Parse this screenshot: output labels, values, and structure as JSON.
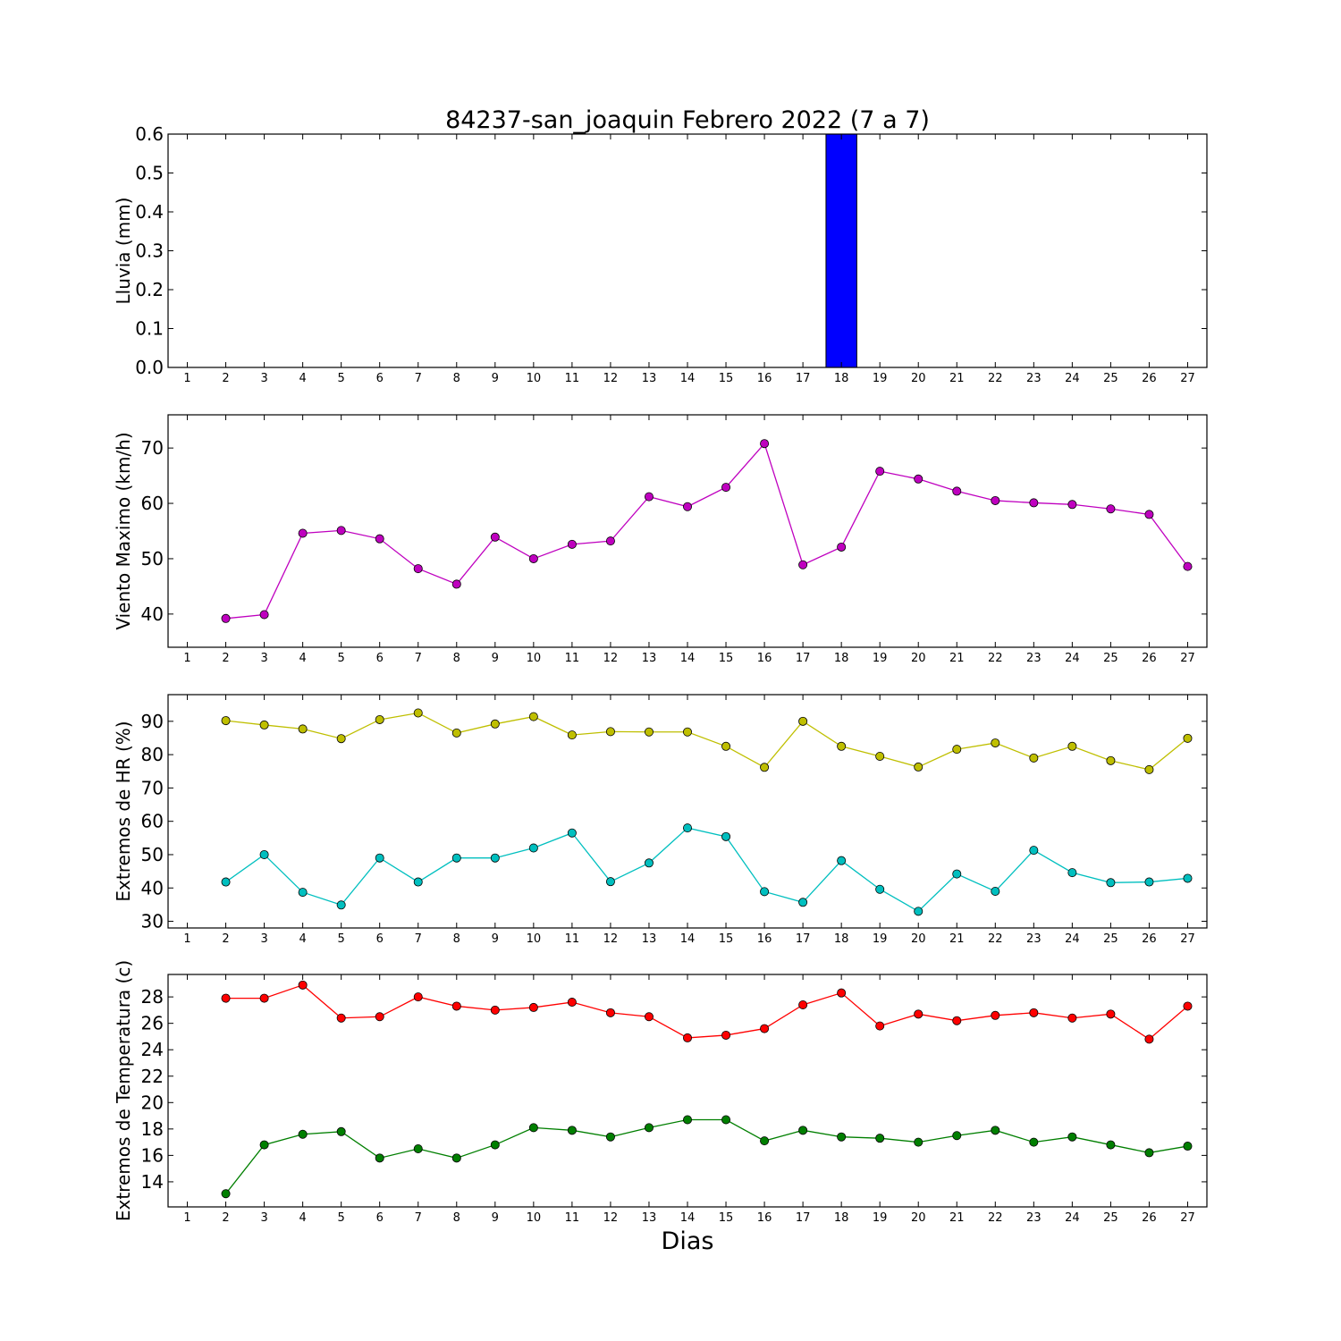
{
  "title": "84237-san_joaquin Febrero 2022  (7 a 7)",
  "xlabel": "Dias",
  "x_ticks": [
    1,
    2,
    3,
    4,
    5,
    6,
    7,
    8,
    9,
    10,
    11,
    12,
    13,
    14,
    15,
    16,
    17,
    18,
    19,
    20,
    21,
    22,
    23,
    24,
    25,
    26,
    27
  ],
  "chart_data": [
    {
      "type": "bar",
      "ylabel": "Lluvia (mm)",
      "xlim": [
        0.5,
        27.5
      ],
      "ylim": [
        0.0,
        0.6
      ],
      "yticks": [
        0.0,
        0.1,
        0.2,
        0.3,
        0.4,
        0.5,
        0.6
      ],
      "ytick_labels": [
        "0.0",
        "0.1",
        "0.2",
        "0.3",
        "0.4",
        "0.5",
        "0.6"
      ],
      "bar_width": 0.8,
      "series": [
        {
          "color": "#0000ff",
          "x": [
            2,
            3,
            4,
            5,
            6,
            7,
            8,
            9,
            10,
            11,
            12,
            13,
            14,
            15,
            16,
            17,
            18,
            19,
            20,
            21,
            22,
            23,
            24,
            25,
            26,
            27
          ],
          "values": [
            0,
            0,
            0,
            0,
            0,
            0,
            0,
            0,
            0,
            0,
            0,
            0,
            0,
            0,
            0,
            0,
            0.6,
            0,
            0,
            0,
            0,
            0,
            0,
            0,
            0,
            0
          ]
        }
      ]
    },
    {
      "type": "line",
      "ylabel": "Viento Maximo (km/h)",
      "xlim": [
        0.5,
        27.5
      ],
      "ylim": [
        34,
        76
      ],
      "yticks": [
        40,
        50,
        60,
        70
      ],
      "ytick_labels": [
        "40",
        "50",
        "60",
        "70"
      ],
      "series": [
        {
          "color": "#bf00bf",
          "x": [
            2,
            3,
            4,
            5,
            6,
            7,
            8,
            9,
            10,
            11,
            12,
            13,
            14,
            15,
            16,
            17,
            18,
            19,
            20,
            21,
            22,
            23,
            24,
            25,
            26,
            27
          ],
          "values": [
            39.2,
            39.9,
            54.6,
            55.1,
            53.6,
            48.2,
            45.4,
            53.9,
            50.0,
            52.6,
            53.2,
            61.2,
            59.4,
            62.9,
            70.8,
            48.9,
            52.1,
            65.8,
            64.4,
            62.2,
            60.5,
            60.1,
            59.8,
            59.0,
            58.0,
            48.6
          ]
        }
      ]
    },
    {
      "type": "line",
      "ylabel": "Extremos de HR (%)",
      "xlim": [
        0.5,
        27.5
      ],
      "ylim": [
        28,
        98
      ],
      "yticks": [
        30,
        40,
        50,
        60,
        70,
        80,
        90
      ],
      "ytick_labels": [
        "30",
        "40",
        "50",
        "60",
        "70",
        "80",
        "90"
      ],
      "series": [
        {
          "color": "#bfbf00",
          "x": [
            2,
            3,
            4,
            5,
            6,
            7,
            8,
            9,
            10,
            11,
            12,
            13,
            14,
            15,
            16,
            17,
            18,
            19,
            20,
            21,
            22,
            23,
            24,
            25,
            26,
            27
          ],
          "values": [
            90.2,
            88.9,
            87.7,
            84.8,
            90.5,
            92.5,
            86.5,
            89.2,
            91.4,
            85.9,
            86.9,
            86.8,
            86.8,
            82.5,
            76.2,
            90.0,
            82.5,
            79.5,
            76.3,
            81.6,
            83.5,
            79.0,
            82.5,
            78.2,
            75.5,
            84.9
          ]
        },
        {
          "color": "#00bfbf",
          "x": [
            2,
            3,
            4,
            5,
            6,
            7,
            8,
            9,
            10,
            11,
            12,
            13,
            14,
            15,
            16,
            17,
            18,
            19,
            20,
            21,
            22,
            23,
            24,
            25,
            26,
            27
          ],
          "values": [
            41.8,
            50.0,
            38.7,
            34.9,
            49.0,
            41.8,
            49.0,
            49.0,
            52.0,
            56.5,
            41.9,
            47.5,
            58.0,
            55.4,
            38.9,
            35.7,
            48.2,
            39.6,
            33.0,
            44.2,
            39.0,
            51.3,
            44.6,
            41.6,
            41.8,
            42.9
          ]
        }
      ]
    },
    {
      "type": "line",
      "ylabel": "Extremos de Temperatura (c)",
      "xlim": [
        0.5,
        27.5
      ],
      "ylim": [
        12.1,
        29.7
      ],
      "yticks": [
        14,
        16,
        18,
        20,
        22,
        24,
        26,
        28
      ],
      "ytick_labels": [
        "14",
        "16",
        "18",
        "20",
        "22",
        "24",
        "26",
        "28"
      ],
      "series": [
        {
          "color": "#ff0000",
          "x": [
            2,
            3,
            4,
            5,
            6,
            7,
            8,
            9,
            10,
            11,
            12,
            13,
            14,
            15,
            16,
            17,
            18,
            19,
            20,
            21,
            22,
            23,
            24,
            25,
            26,
            27
          ],
          "values": [
            27.9,
            27.9,
            28.9,
            26.4,
            26.5,
            28.0,
            27.3,
            27.0,
            27.2,
            27.6,
            26.8,
            26.5,
            24.9,
            25.1,
            25.6,
            27.4,
            28.3,
            25.8,
            26.7,
            26.2,
            26.6,
            26.8,
            26.4,
            26.7,
            24.8,
            27.3
          ]
        },
        {
          "color": "#007f00",
          "x": [
            2,
            3,
            4,
            5,
            6,
            7,
            8,
            9,
            10,
            11,
            12,
            13,
            14,
            15,
            16,
            17,
            18,
            19,
            20,
            21,
            22,
            23,
            24,
            25,
            26,
            27
          ],
          "values": [
            13.1,
            16.8,
            17.6,
            17.8,
            15.8,
            16.5,
            15.8,
            16.8,
            18.1,
            17.9,
            17.4,
            18.1,
            18.7,
            18.7,
            17.1,
            17.9,
            17.4,
            17.3,
            17.0,
            17.5,
            17.9,
            17.0,
            17.4,
            16.8,
            16.2,
            16.7
          ]
        }
      ]
    }
  ]
}
